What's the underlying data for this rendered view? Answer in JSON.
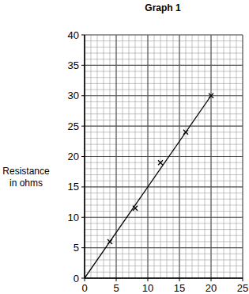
{
  "chart_data": {
    "type": "scatter",
    "title": "Graph 1",
    "ylabel": "Resistance in ohms",
    "series": [
      {
        "type": "scatter",
        "marker": "x",
        "color": "#000000",
        "x": [
          4,
          8,
          12,
          16,
          20
        ],
        "values": [
          6,
          11.5,
          19,
          24,
          30
        ]
      },
      {
        "type": "line",
        "line_style": "solid",
        "color": "#000000",
        "x": [
          0,
          20
        ],
        "values": [
          0,
          30
        ]
      }
    ],
    "xlim": [
      0,
      25
    ],
    "xticks": [
      0,
      5,
      10,
      15,
      20,
      25
    ],
    "ylim": [
      0,
      40
    ],
    "yticks": [
      0,
      5,
      10,
      15,
      20,
      25,
      30,
      35,
      40
    ],
    "grid": true
  }
}
